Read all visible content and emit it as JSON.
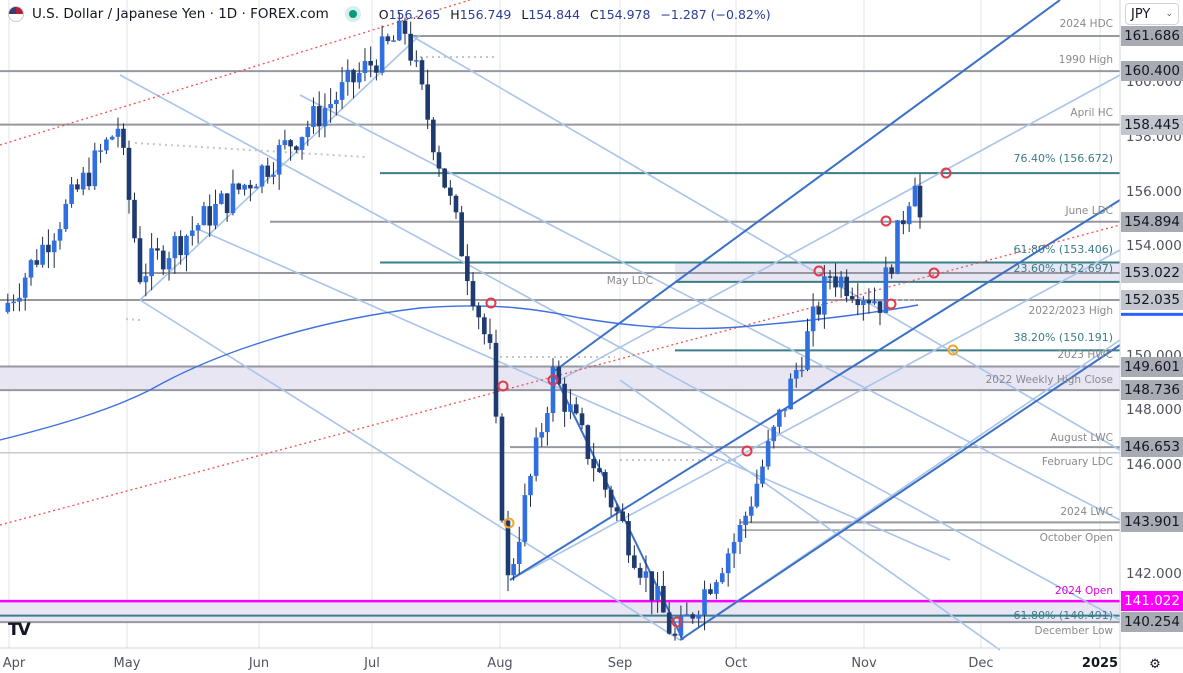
{
  "header": {
    "symbol_title": "U.S. Dollar / Japanese Yen · 1D · FOREX.com",
    "ohlc": {
      "open_key": "O",
      "open": "156.265",
      "high_key": "H",
      "high": "156.749",
      "low_key": "L",
      "low": "154.844",
      "close_key": "C",
      "close": "154.978",
      "change": "−1.287 (−0.82%)"
    },
    "currency": "JPY"
  },
  "price_axis": {
    "ticks": [
      "160.000",
      "158.000",
      "156.000",
      "154.000",
      "150.000",
      "148.000",
      "146.000",
      "142.000"
    ],
    "level_tags": [
      {
        "value": "161.686",
        "bg": "#a9abb3"
      },
      {
        "value": "160.400",
        "bg": "#a9abb3"
      },
      {
        "value": "158.445",
        "bg": "#c3c5cc"
      },
      {
        "value": "154.894",
        "bg": "#a9abb3"
      },
      {
        "value": "153.022",
        "bg": "#c3c5cc"
      },
      {
        "value": "152.035",
        "bg": "#c3c5cc"
      },
      {
        "value": "149.601",
        "bg": "#a9abb3"
      },
      {
        "value": "148.736",
        "bg": "#a9abb3"
      },
      {
        "value": "146.653",
        "bg": "#a9abb3"
      },
      {
        "value": "143.901",
        "bg": "#a9abb3"
      },
      {
        "value": "141.022",
        "bg": "#ff00ff"
      },
      {
        "value": "140.254",
        "bg": "#a9abb3"
      }
    ]
  },
  "time_axis": {
    "labels": [
      "Apr",
      "May",
      "Jun",
      "Jul",
      "Aug",
      "Sep",
      "Oct",
      "Nov",
      "Dec",
      "2025"
    ]
  },
  "level_labels": [
    {
      "text": "2024 HDC",
      "type": "gray"
    },
    {
      "text": "1990 High",
      "type": "gray"
    },
    {
      "text": "April HC",
      "type": "gray"
    },
    {
      "text": "76.40% (156.672)",
      "type": "fib"
    },
    {
      "text": "June LDC",
      "type": "gray"
    },
    {
      "text": "61.80% (153.406)",
      "type": "fib"
    },
    {
      "text": "23.60% (152.697)",
      "type": "fib"
    },
    {
      "text": "May LDC",
      "type": "gray"
    },
    {
      "text": "2022/2023 High",
      "type": "gray"
    },
    {
      "text": "38.20% (150.191)",
      "type": "fib"
    },
    {
      "text": "2023 HWC",
      "type": "gray"
    },
    {
      "text": "2022 Weekly High Close",
      "type": "gray"
    },
    {
      "text": "August LWC",
      "type": "gray"
    },
    {
      "text": "February LDC",
      "type": "gray"
    },
    {
      "text": "2024 LWC",
      "type": "gray"
    },
    {
      "text": "October Open",
      "type": "gray"
    },
    {
      "text": "2024 Open",
      "type": "magenta"
    },
    {
      "text": "61.80% (140.491)",
      "type": "fib"
    },
    {
      "text": "December Low",
      "type": "gray"
    }
  ],
  "colors": {
    "up_candle": "#2f6fe0",
    "down_candle": "#1e3a6e",
    "level_gray": "#9598a1",
    "fib_teal": "#3b7d88",
    "magenta": "#ff00ff",
    "zone_fill": "#e8e6f3",
    "pitchfork_dark": "#3a70c8",
    "pitchfork_light": "#a9c4ea",
    "ma_line": "#3e6fe0",
    "trend_red": "#ef5350",
    "marker_red": "#e33a4a",
    "marker_orange": "#f5a623"
  },
  "branding": {
    "logo_text": "TV"
  },
  "chart_data": {
    "type": "candlestick",
    "title": "U.S. Dollar / Japanese Yen · 1D · FOREX.com",
    "xlabel": "",
    "ylabel": "JPY",
    "ylim": [
      139.0,
      163.0
    ],
    "x_ticks": [
      "Apr",
      "May",
      "Jun",
      "Jul",
      "Aug",
      "Sep",
      "Oct",
      "Nov",
      "Dec",
      "2025"
    ],
    "last_bar": {
      "open": 156.265,
      "high": 156.749,
      "low": 154.844,
      "close": 154.978,
      "change": -1.287,
      "change_pct": -0.82
    },
    "horizontal_levels": [
      {
        "label": "2024 HDC",
        "value": 161.686
      },
      {
        "label": "1990 High",
        "value": 160.4
      },
      {
        "label": "April HC",
        "value": 158.445
      },
      {
        "label": "76.40% retracement",
        "value": 156.672
      },
      {
        "label": "June LDC",
        "value": 154.894
      },
      {
        "label": "61.80% retracement",
        "value": 153.406
      },
      {
        "label": "23.60% retracement",
        "value": 152.697
      },
      {
        "label": "May LDC",
        "value": 153.022
      },
      {
        "label": "2022/2023 High",
        "value": 152.035
      },
      {
        "label": "38.20% retracement",
        "value": 150.191
      },
      {
        "label": "2023 HWC",
        "value": 149.601
      },
      {
        "label": "2022 Weekly High Close",
        "value": 148.736
      },
      {
        "label": "August LWC",
        "value": 146.653
      },
      {
        "label": "February LDC",
        "value": 146.45
      },
      {
        "label": "2024 LWC",
        "value": 143.901
      },
      {
        "label": "October Open",
        "value": 143.62
      },
      {
        "label": "2024 Open",
        "value": 141.022
      },
      {
        "label": "61.80% retracement",
        "value": 140.491
      },
      {
        "label": "December Low",
        "value": 140.254
      }
    ],
    "approx_monthly_path": [
      {
        "date": "Apr",
        "price": 151.6
      },
      {
        "date": "late Apr",
        "price": 158.4
      },
      {
        "date": "May",
        "price": 153.0
      },
      {
        "date": "Jun",
        "price": 156.8
      },
      {
        "date": "early Jul",
        "price": 161.9
      },
      {
        "date": "Aug",
        "price": 150.0
      },
      {
        "date": "Aug 5 low",
        "price": 141.7
      },
      {
        "date": "mid Aug",
        "price": 149.3
      },
      {
        "date": "Sep 16 low",
        "price": 139.6
      },
      {
        "date": "Oct",
        "price": 143.6
      },
      {
        "date": "late Oct",
        "price": 153.0
      },
      {
        "date": "Nov",
        "price": 152.0
      },
      {
        "date": "mid Nov",
        "price": 156.7
      },
      {
        "date": "last",
        "price": 154.978
      }
    ],
    "indicators": [
      "200-day moving average (blue)",
      "Pitchfork channels (blue)",
      "Red dotted trendline",
      "Fibonacci retracements (teal)"
    ]
  }
}
